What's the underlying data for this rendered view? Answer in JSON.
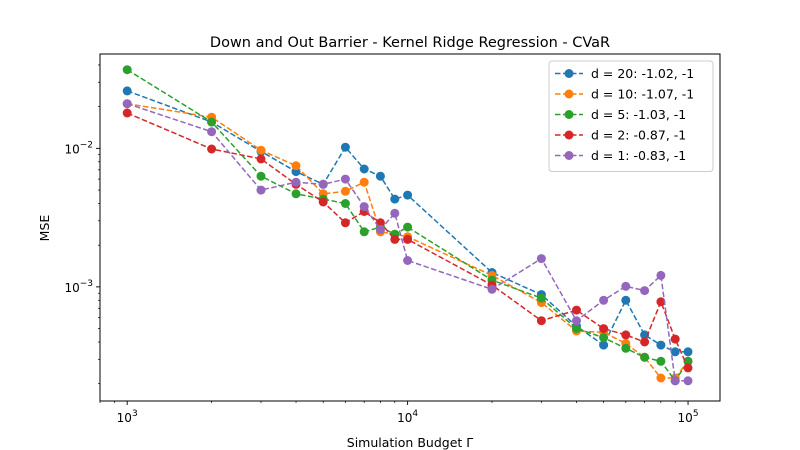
{
  "chart_data": {
    "type": "line",
    "title": "Down and Out Barrier - Kernel Ridge Regression - CVaR",
    "xlabel": "Simulation Budget Γ",
    "ylabel": "MSE",
    "xscale": "log",
    "yscale": "log",
    "xlim": [
      800,
      130000
    ],
    "ylim": [
      0.00015,
      0.048
    ],
    "xticks": [
      {
        "value": 1000,
        "base": "10",
        "exp": "3"
      },
      {
        "value": 10000,
        "base": "10",
        "exp": "4"
      },
      {
        "value": 100000,
        "base": "10",
        "exp": "5"
      }
    ],
    "yticks": [
      {
        "value": 0.001,
        "base": "10",
        "exp": "−3"
      },
      {
        "value": 0.01,
        "base": "10",
        "exp": "−2"
      }
    ],
    "grid": false,
    "legend_position": "top-right",
    "line_style": "dashed",
    "marker": "circle",
    "x": [
      1000,
      2000,
      3000,
      4000,
      5000,
      6000,
      7000,
      8000,
      9000,
      10000,
      20000,
      30000,
      40000,
      50000,
      60000,
      70000,
      80000,
      90000,
      100000
    ],
    "series": [
      {
        "name": "d = 20: -1.02, -1",
        "color": "#1f77b4",
        "values": [
          0.026,
          0.0155,
          0.0095,
          0.0068,
          0.0055,
          0.0102,
          0.0071,
          0.0063,
          0.0043,
          0.0046,
          0.00127,
          0.00088,
          0.00052,
          0.00038,
          0.0008,
          0.00045,
          0.00038,
          0.00034,
          0.00034
        ]
      },
      {
        "name": "d = 10: -1.07, -1",
        "color": "#ff7f0e",
        "values": [
          0.021,
          0.0168,
          0.0097,
          0.0075,
          0.0047,
          0.0049,
          0.0057,
          0.0025,
          0.0024,
          0.0023,
          0.00121,
          0.00077,
          0.00048,
          0.00047,
          0.00039,
          0.00031,
          0.00022,
          0.00022,
          0.00029
        ]
      },
      {
        "name": "d = 5: -1.03, -1",
        "color": "#2ca02c",
        "values": [
          0.037,
          0.0155,
          0.0063,
          0.0047,
          0.0043,
          0.004,
          0.0025,
          0.0027,
          0.0024,
          0.0027,
          0.00112,
          0.00083,
          0.0005,
          0.00043,
          0.00036,
          0.00031,
          0.00029,
          0.00021,
          0.00029
        ]
      },
      {
        "name": "d = 2: -0.87, -1",
        "color": "#d62728",
        "values": [
          0.018,
          0.0099,
          0.0084,
          0.0055,
          0.0041,
          0.0029,
          0.0035,
          0.0029,
          0.0022,
          0.0022,
          0.00103,
          0.00057,
          0.00068,
          0.0005,
          0.00045,
          0.0004,
          0.00078,
          0.00042,
          0.00026
        ]
      },
      {
        "name": "d = 1: -0.83, -1",
        "color": "#9467bd",
        "values": [
          0.021,
          0.0132,
          0.005,
          0.0057,
          0.0055,
          0.006,
          0.0038,
          0.0026,
          0.0034,
          0.00155,
          0.00096,
          0.0016,
          0.00057,
          0.0008,
          0.00101,
          0.00094,
          0.00121,
          0.00021,
          0.00021
        ]
      }
    ]
  }
}
